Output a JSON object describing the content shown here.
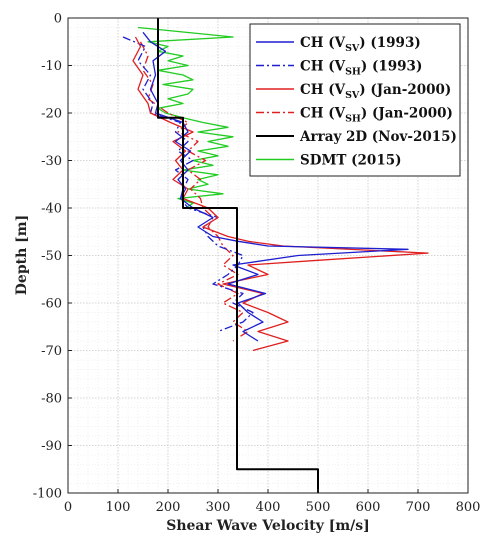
{
  "chart_data": {
    "type": "line",
    "title": "",
    "xlabel": "Shear Wave Velocity [m/s]",
    "ylabel": "Depth [m]",
    "xlim": [
      0,
      800
    ],
    "ylim": [
      -100,
      0
    ],
    "x_ticks": [
      "0",
      "100",
      "200",
      "300",
      "400",
      "500",
      "600",
      "700",
      "800"
    ],
    "y_ticks": [
      "0",
      "-10",
      "-20",
      "-30",
      "-40",
      "-50",
      "-60",
      "-70",
      "-80",
      "-90",
      "-100"
    ],
    "grid": true,
    "legend_position": "top-right",
    "series": [
      {
        "name": "CH (VSV) (1993)",
        "legend_main": "CH (V",
        "legend_sub": "SV",
        "legend_tail": ") (1993)",
        "color": "#1f1fd0",
        "dash": "solid",
        "points": [
          [
            150,
            -3
          ],
          [
            165,
            -5
          ],
          [
            195,
            -7
          ],
          [
            170,
            -9
          ],
          [
            175,
            -12
          ],
          [
            165,
            -15
          ],
          [
            180,
            -18
          ],
          [
            175,
            -20
          ],
          [
            230,
            -22
          ],
          [
            240,
            -24
          ],
          [
            215,
            -26
          ],
          [
            245,
            -28
          ],
          [
            225,
            -30
          ],
          [
            240,
            -32
          ],
          [
            220,
            -34
          ],
          [
            235,
            -36
          ],
          [
            225,
            -38
          ],
          [
            250,
            -40
          ],
          [
            290,
            -42
          ],
          [
            260,
            -44
          ],
          [
            290,
            -46
          ],
          [
            340,
            -47
          ],
          [
            400,
            -48
          ],
          [
            680,
            -48.7
          ],
          [
            460,
            -50
          ],
          [
            330,
            -52
          ],
          [
            380,
            -54
          ],
          [
            320,
            -56
          ],
          [
            395,
            -58
          ],
          [
            340,
            -60
          ],
          [
            360,
            -62
          ],
          [
            390,
            -64
          ],
          [
            350,
            -66
          ],
          [
            380,
            -68
          ]
        ]
      },
      {
        "name": "CH (VSH) (1993)",
        "legend_main": "CH (V",
        "legend_sub": "SH",
        "legend_tail": ") (1993)",
        "color": "#1f1fd0",
        "dash": "8,3,2,3",
        "points": [
          [
            110,
            -4
          ],
          [
            155,
            -6
          ],
          [
            140,
            -9
          ],
          [
            165,
            -12
          ],
          [
            150,
            -15
          ],
          [
            170,
            -18
          ],
          [
            165,
            -20
          ],
          [
            225,
            -22
          ],
          [
            215,
            -24
          ],
          [
            240,
            -26
          ],
          [
            220,
            -28
          ],
          [
            250,
            -30
          ],
          [
            215,
            -32
          ],
          [
            240,
            -34
          ],
          [
            230,
            -36
          ],
          [
            225,
            -38
          ],
          [
            240,
            -40
          ],
          [
            300,
            -42
          ],
          [
            270,
            -44
          ],
          [
            280,
            -46
          ],
          [
            300,
            -48
          ],
          [
            350,
            -50
          ],
          [
            340,
            -52
          ],
          [
            320,
            -54
          ],
          [
            290,
            -56
          ],
          [
            350,
            -58
          ],
          [
            330,
            -60
          ],
          [
            370,
            -62
          ],
          [
            350,
            -64
          ],
          [
            300,
            -66
          ]
        ]
      },
      {
        "name": "CH (VSV) (Jan-2000)",
        "legend_main": "CH (V",
        "legend_sub": "SV",
        "legend_tail": ") (Jan-2000)",
        "color": "#e02020",
        "dash": "solid",
        "points": [
          [
            135,
            -4
          ],
          [
            145,
            -6
          ],
          [
            130,
            -9
          ],
          [
            150,
            -12
          ],
          [
            140,
            -15
          ],
          [
            160,
            -18
          ],
          [
            165,
            -20
          ],
          [
            205,
            -22
          ],
          [
            250,
            -24
          ],
          [
            210,
            -26
          ],
          [
            235,
            -28
          ],
          [
            215,
            -30
          ],
          [
            230,
            -32
          ],
          [
            210,
            -34
          ],
          [
            240,
            -36
          ],
          [
            230,
            -38
          ],
          [
            280,
            -40
          ],
          [
            300,
            -42
          ],
          [
            270,
            -44
          ],
          [
            320,
            -46
          ],
          [
            360,
            -47
          ],
          [
            430,
            -48
          ],
          [
            720,
            -49.5
          ],
          [
            500,
            -51
          ],
          [
            360,
            -52
          ],
          [
            400,
            -54
          ],
          [
            310,
            -56
          ],
          [
            390,
            -58
          ],
          [
            350,
            -60
          ],
          [
            400,
            -62
          ],
          [
            440,
            -64
          ],
          [
            380,
            -66
          ],
          [
            440,
            -68
          ],
          [
            370,
            -70
          ]
        ]
      },
      {
        "name": "CH (VSH) (Jan-2000)",
        "legend_main": "CH (V",
        "legend_sub": "SH",
        "legend_tail": ") (Jan-2000)",
        "color": "#e02020",
        "dash": "8,3,2,3",
        "points": [
          [
            145,
            -5
          ],
          [
            160,
            -8
          ],
          [
            150,
            -11
          ],
          [
            170,
            -14
          ],
          [
            160,
            -17
          ],
          [
            200,
            -20
          ],
          [
            240,
            -22
          ],
          [
            220,
            -24
          ],
          [
            260,
            -26
          ],
          [
            240,
            -28
          ],
          [
            275,
            -30
          ],
          [
            240,
            -32
          ],
          [
            265,
            -34
          ],
          [
            245,
            -36
          ],
          [
            265,
            -38
          ],
          [
            270,
            -40
          ],
          [
            290,
            -42
          ],
          [
            280,
            -44
          ],
          [
            300,
            -46
          ],
          [
            310,
            -48
          ],
          [
            330,
            -50
          ],
          [
            310,
            -52
          ],
          [
            340,
            -54
          ],
          [
            300,
            -56
          ],
          [
            340,
            -58
          ],
          [
            310,
            -60
          ],
          [
            350,
            -62
          ],
          [
            330,
            -64
          ],
          [
            360,
            -66
          ],
          [
            330,
            -68
          ]
        ]
      },
      {
        "name": "Array 2D (Nov-2015)",
        "legend_main": "Array 2D (Nov-2015)",
        "legend_sub": "",
        "legend_tail": "",
        "color": "#000000",
        "dash": "solid",
        "points": [
          [
            180,
            0
          ],
          [
            180,
            -21
          ],
          [
            230,
            -21
          ],
          [
            230,
            -40
          ],
          [
            338,
            -40
          ],
          [
            338,
            -95
          ],
          [
            500,
            -95
          ],
          [
            500,
            -100
          ]
        ]
      },
      {
        "name": "SDMT (2015)",
        "legend_main": "SDMT (2015)",
        "legend_sub": "",
        "legend_tail": "",
        "color": "#22cc22",
        "dash": "solid",
        "points": [
          [
            140,
            -2
          ],
          [
            330,
            -4
          ],
          [
            160,
            -5
          ],
          [
            200,
            -6
          ],
          [
            180,
            -7
          ],
          [
            230,
            -8
          ],
          [
            200,
            -9
          ],
          [
            240,
            -10
          ],
          [
            180,
            -11
          ],
          [
            230,
            -12
          ],
          [
            250,
            -13
          ],
          [
            190,
            -14
          ],
          [
            250,
            -15
          ],
          [
            240,
            -16
          ],
          [
            200,
            -17
          ],
          [
            230,
            -18
          ],
          [
            180,
            -19
          ],
          [
            195,
            -20
          ],
          [
            230,
            -21
          ],
          [
            270,
            -22
          ],
          [
            320,
            -23
          ],
          [
            260,
            -24
          ],
          [
            330,
            -25
          ],
          [
            280,
            -26
          ],
          [
            320,
            -27
          ],
          [
            260,
            -28
          ],
          [
            300,
            -29
          ],
          [
            250,
            -30
          ],
          [
            290,
            -31
          ],
          [
            230,
            -32
          ],
          [
            300,
            -33
          ],
          [
            260,
            -34
          ],
          [
            280,
            -35
          ],
          [
            240,
            -36
          ],
          [
            310,
            -37
          ],
          [
            220,
            -38
          ],
          [
            250,
            -39
          ],
          [
            235,
            -40
          ]
        ]
      }
    ]
  }
}
